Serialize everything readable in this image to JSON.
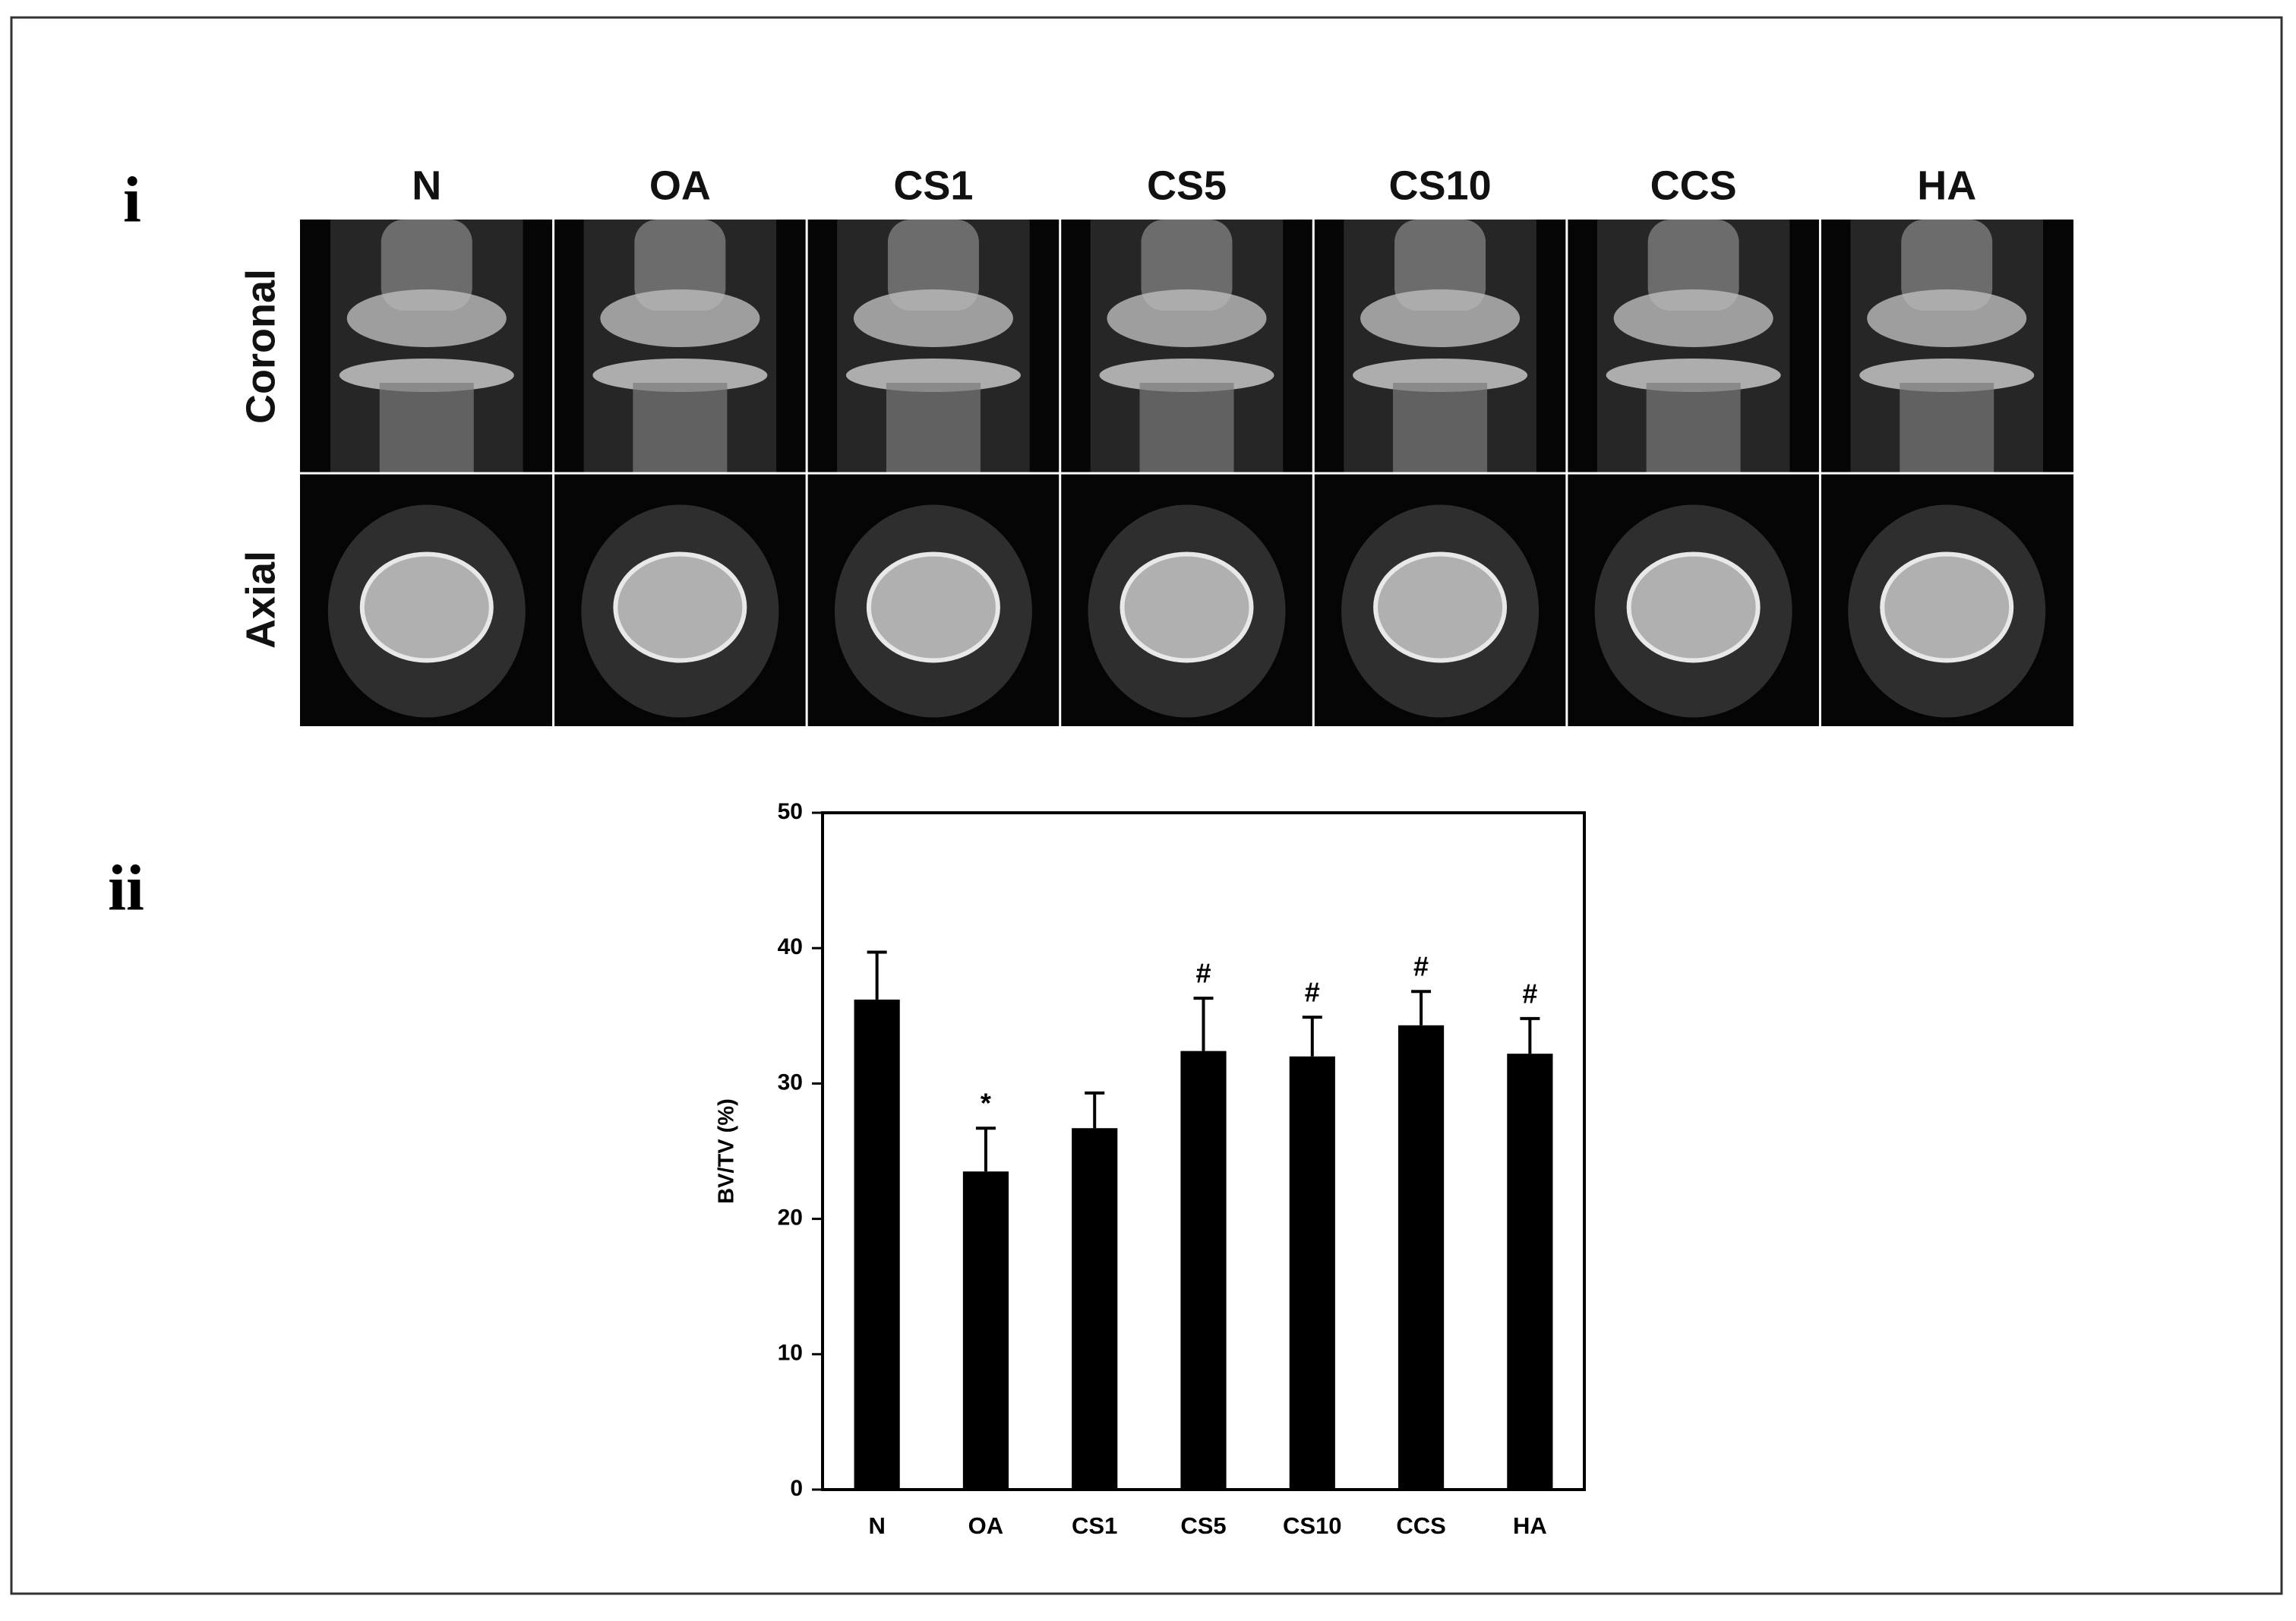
{
  "panel_labels": [
    "i",
    "ii"
  ],
  "image_grid": {
    "columns": [
      "N",
      "OA",
      "CS1",
      "CS5",
      "CS10",
      "CCS",
      "HA"
    ],
    "rows": [
      "Coronal",
      "Axial"
    ]
  },
  "chart_data": {
    "type": "bar",
    "ylabel": "BV/TV (%)",
    "categories": [
      "N",
      "OA",
      "CS1",
      "CS5",
      "CS10",
      "CCS",
      "HA"
    ],
    "values": [
      36.2,
      23.5,
      26.7,
      32.4,
      32.0,
      34.3,
      32.2
    ],
    "errors": [
      3.5,
      3.2,
      2.6,
      3.9,
      2.9,
      2.5,
      2.6
    ],
    "annotations": [
      null,
      "*",
      null,
      "#",
      "#",
      "#",
      "#"
    ],
    "color": "#000000",
    "ylim": [
      0,
      50
    ],
    "yticks": [
      0,
      10,
      20,
      30,
      40,
      50
    ],
    "grid": false
  }
}
